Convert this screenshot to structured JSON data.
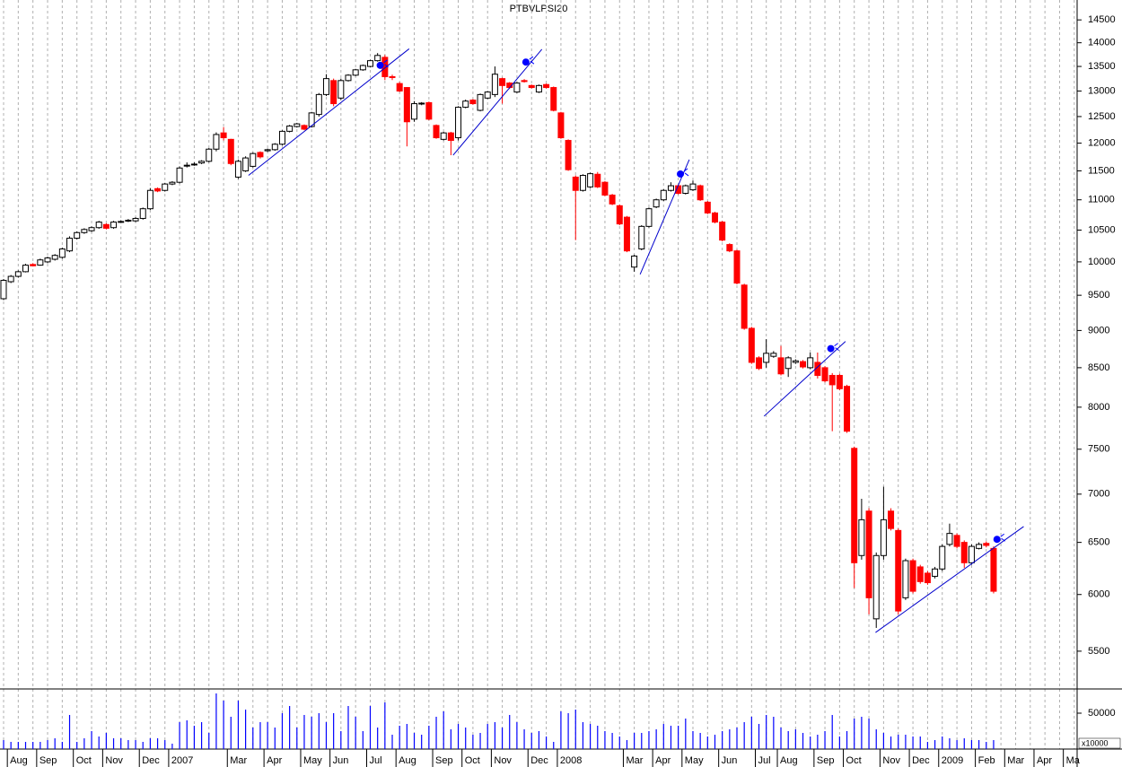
{
  "chart_data": {
    "type": "candlestick",
    "title": "PTBVLPSI20",
    "categories": [
      null,
      "Aug",
      null,
      null,
      null,
      "Sep",
      null,
      null,
      null,
      null,
      "Oct",
      null,
      null,
      null,
      "Nov",
      null,
      null,
      null,
      null,
      "Dec",
      null,
      null,
      null,
      "2007",
      null,
      null,
      null,
      null,
      null,
      null,
      null,
      "Mar",
      null,
      null,
      null,
      null,
      "Apr",
      null,
      null,
      null,
      null,
      "May",
      null,
      null,
      null,
      "Jun",
      null,
      null,
      null,
      null,
      "Jul",
      null,
      null,
      null,
      "Aug",
      null,
      null,
      null,
      null,
      "Sep",
      null,
      null,
      null,
      "Oct",
      null,
      null,
      null,
      "Nov",
      null,
      null,
      null,
      null,
      "Dec",
      null,
      null,
      null,
      "2008",
      null,
      null,
      null,
      null,
      null,
      null,
      null,
      null,
      "Mar",
      null,
      null,
      null,
      "Apr",
      null,
      null,
      null,
      "May",
      null,
      null,
      null,
      null,
      "Jun",
      null,
      null,
      null,
      null,
      "Jul",
      null,
      null,
      "Aug",
      null,
      null,
      null,
      null,
      "Sep",
      null,
      null,
      null,
      "Oct",
      null,
      null,
      null,
      null,
      "Nov",
      null,
      null,
      null,
      "Dec",
      null,
      null,
      null,
      "2009",
      null,
      null,
      null,
      null,
      "Feb",
      null,
      null,
      null,
      "Mar",
      null,
      null,
      null,
      "Apr",
      null,
      null,
      null,
      "Ma",
      null
    ],
    "open": [
      9450,
      9700,
      9780,
      9850,
      9960,
      9950,
      10000,
      10040,
      10070,
      10170,
      10370,
      10460,
      10490,
      10540,
      10590,
      10540,
      10640,
      10650,
      10650,
      10690,
      10850,
      11190,
      11160,
      11270,
      11300,
      11590,
      11610,
      11640,
      11670,
      11890,
      12190,
      12070,
      11390,
      11500,
      11580,
      11830,
      11860,
      11880,
      11980,
      12220,
      12310,
      12330,
      12310,
      12540,
      12930,
      13210,
      12860,
      13210,
      13320,
      13430,
      13500,
      13620,
      13690,
      13290,
      13150,
      13070,
      12450,
      12750,
      12770,
      12330,
      12070,
      12190,
      12100,
      12680,
      12820,
      12620,
      12860,
      12930,
      13250,
      13160,
      12980,
      13210,
      13110,
      12980,
      13130,
      13070,
      12570,
      12050,
      11390,
      11160,
      11220,
      11440,
      11300,
      11080,
      10900,
      10710,
      9920,
      10200,
      10560,
      10880,
      11000,
      11160,
      11240,
      11110,
      11170,
      11240,
      10960,
      10780,
      10630,
      10270,
      10170,
      9650,
      9030,
      8630,
      8570,
      8650,
      8630,
      8490,
      8570,
      8580,
      8500,
      8570,
      8500,
      8400,
      8400,
      8260,
      7510,
      6370,
      6820,
      5780,
      6370,
      6820,
      6620,
      5970,
      6320,
      6260,
      6200,
      6170,
      6240,
      6480,
      6570,
      6500,
      6300,
      6440,
      6490,
      6440,
      null,
      null,
      null,
      null,
      null,
      null,
      null,
      null,
      null,
      null,
      null
    ],
    "high": [
      9740,
      9800,
      9870,
      9970,
      9980,
      10050,
      10080,
      10120,
      10220,
      10400,
      10480,
      10530,
      10560,
      10650,
      10610,
      10650,
      10660,
      10680,
      10710,
      10870,
      11200,
      11210,
      11290,
      11320,
      11580,
      11650,
      11650,
      11690,
      11910,
      12200,
      12300,
      12080,
      11700,
      11760,
      11830,
      11850,
      11900,
      12000,
      12240,
      12340,
      12380,
      12350,
      12590,
      12960,
      13340,
      13250,
      13250,
      13340,
      13450,
      13540,
      13640,
      13780,
      13740,
      13330,
      13180,
      13080,
      12800,
      12780,
      12790,
      12350,
      12210,
      12210,
      12700,
      12830,
      12840,
      12950,
      13000,
      13500,
      13270,
      13180,
      13180,
      13240,
      13130,
      13130,
      13150,
      13090,
      12590,
      12070,
      11420,
      11440,
      11470,
      11480,
      11320,
      11100,
      10920,
      10730,
      10110,
      10580,
      10870,
      11020,
      11180,
      11300,
      11260,
      11260,
      11330,
      11260,
      10980,
      10800,
      10650,
      10290,
      10190,
      9670,
      9050,
      8650,
      8880,
      8720,
      8790,
      8650,
      8610,
      8600,
      8700,
      8700,
      8520,
      8430,
      8420,
      8280,
      7530,
      6950,
      6850,
      6400,
      7080,
      6850,
      6640,
      6340,
      6340,
      6280,
      6220,
      6260,
      6480,
      6690,
      6590,
      6520,
      6480,
      6500,
      6510,
      6460,
      null,
      null,
      null,
      null,
      null,
      null,
      null,
      null,
      null,
      null,
      null
    ],
    "low": [
      9430,
      9680,
      9760,
      9840,
      9930,
      9940,
      9980,
      10020,
      10050,
      10150,
      10350,
      10440,
      10470,
      10520,
      10510,
      10520,
      10620,
      10630,
      10630,
      10670,
      10830,
      11130,
      11140,
      11250,
      11280,
      11560,
      11590,
      11620,
      11650,
      11850,
      12050,
      11600,
      11360,
      11480,
      11560,
      11720,
      11840,
      11860,
      11960,
      12200,
      12290,
      12240,
      12290,
      12500,
      12900,
      12700,
      12820,
      13190,
      13300,
      13410,
      13480,
      13600,
      13220,
      13220,
      12980,
      11940,
      12400,
      12720,
      12430,
      12080,
      12050,
      11780,
      12050,
      12660,
      12730,
      12600,
      12840,
      12880,
      12750,
      13040,
      12960,
      13170,
      13050,
      12960,
      13050,
      12600,
      12080,
      11500,
      10340,
      11140,
      11200,
      11200,
      11060,
      10910,
      10580,
      10150,
      9850,
      10180,
      10540,
      10860,
      10980,
      11140,
      11090,
      11090,
      11150,
      10980,
      10760,
      10610,
      10320,
      10150,
      9660,
      9010,
      8550,
      8470,
      8500,
      8630,
      8400,
      8380,
      8550,
      8490,
      8480,
      8360,
      8310,
      7710,
      8210,
      7690,
      6060,
      6330,
      5820,
      5700,
      6330,
      6620,
      5820,
      5950,
      6010,
      6100,
      6090,
      6150,
      6220,
      6460,
      6440,
      6250,
      6280,
      6430,
      6450,
      6010,
      null,
      null,
      null,
      null,
      null,
      null,
      null,
      null,
      null,
      null,
      null
    ],
    "close": [
      9720,
      9780,
      9850,
      9950,
      9940,
      10030,
      10060,
      10100,
      10200,
      10370,
      10460,
      10510,
      10540,
      10630,
      10530,
      10630,
      10640,
      10660,
      10690,
      10850,
      11160,
      11150,
      11270,
      11300,
      11550,
      11600,
      11620,
      11670,
      11890,
      12160,
      12100,
      11630,
      11670,
      11730,
      11810,
      11750,
      11880,
      11980,
      12220,
      12320,
      12360,
      12260,
      12570,
      12930,
      13250,
      12750,
      13210,
      13320,
      13430,
      13520,
      13620,
      13730,
      13290,
      13280,
      13000,
      12400,
      12750,
      12760,
      12450,
      12100,
      12190,
      12050,
      12680,
      12800,
      12750,
      12930,
      12980,
      13340,
      13110,
      13070,
      13160,
      13190,
      13070,
      13110,
      13070,
      12620,
      12100,
      11520,
      11160,
      11420,
      11450,
      11220,
      11080,
      10930,
      10600,
      10170,
      10090,
      10560,
      10850,
      11000,
      11160,
      11240,
      11110,
      11240,
      11270,
      11000,
      10780,
      10630,
      10340,
      10170,
      9680,
      9030,
      8570,
      8490,
      8690,
      8690,
      8420,
      8630,
      8590,
      8510,
      8630,
      8400,
      8330,
      8280,
      8230,
      7710,
      6300,
      6730,
      5970,
      6370,
      6730,
      6640,
      5850,
      6320,
      6030,
      6120,
      6110,
      6240,
      6460,
      6590,
      6460,
      6300,
      6460,
      6480,
      6470,
      6030,
      null,
      null,
      null,
      null,
      null,
      null,
      null,
      null,
      null,
      null,
      null
    ],
    "volume": [
      12500,
      10000,
      10000,
      10000,
      10000,
      10000,
      12500,
      15000,
      10000,
      47500,
      10000,
      15000,
      25000,
      17500,
      22500,
      15000,
      15000,
      12500,
      12500,
      10000,
      15000,
      15000,
      12500,
      7500,
      37500,
      40000,
      32500,
      37500,
      22500,
      77500,
      67500,
      45000,
      67500,
      55000,
      30000,
      37500,
      37500,
      30000,
      50000,
      60000,
      30000,
      47500,
      45000,
      50000,
      37500,
      50000,
      25000,
      60000,
      45000,
      25000,
      60000,
      30000,
      65000,
      20000,
      32500,
      35000,
      22500,
      20000,
      32500,
      45000,
      52500,
      27500,
      35000,
      30000,
      20000,
      22500,
      35000,
      37500,
      30000,
      47500,
      37500,
      27500,
      22500,
      25000,
      17500,
      10000,
      52500,
      50000,
      55000,
      37500,
      35000,
      32500,
      25000,
      22500,
      17500,
      12500,
      22500,
      22500,
      25000,
      27500,
      35000,
      32500,
      32500,
      42500,
      25000,
      22500,
      17500,
      20000,
      25000,
      27500,
      30000,
      37500,
      45000,
      35000,
      47500,
      45000,
      30000,
      25000,
      27500,
      22500,
      17500,
      20000,
      25000,
      47500,
      17500,
      25000,
      42500,
      45000,
      42500,
      27500,
      22500,
      17500,
      20000,
      20000,
      17500,
      17500,
      10000,
      12500,
      17500,
      15000,
      12500,
      15000,
      12500,
      12500,
      10000,
      12500,
      null,
      null,
      null,
      null,
      null,
      null,
      null,
      null,
      null,
      null,
      null
    ],
    "ylim": [
      5190,
      14950
    ],
    "yticks": [
      5500,
      6000,
      6500,
      7000,
      7500,
      8000,
      8500,
      9000,
      9500,
      10000,
      10500,
      11000,
      11500,
      12000,
      12500,
      13000,
      13500,
      14000,
      14500
    ],
    "log_scale": true,
    "y2lim": [
      0,
      82500
    ],
    "y2ticks": [
      50000
    ],
    "y2_unit": "x10000",
    "x_grid": true,
    "up_color": "#ffffff",
    "down_color": "#ff0000",
    "volume_color": "#0000ff",
    "trendline_color": "#0000cc",
    "trendlines": [
      {
        "x": [
          33.4,
          55.3
        ],
        "y": [
          11420,
          13870
        ]
      },
      {
        "x": [
          61.3,
          73.4
        ],
        "y": [
          11780,
          13860
        ]
      },
      {
        "x": [
          86.8,
          93.5
        ],
        "y": [
          9810,
          11700
        ]
      },
      {
        "x": [
          103.7,
          114.8
        ],
        "y": [
          7890,
          8850
        ]
      },
      {
        "x": [
          118.9,
          139.1
        ],
        "y": [
          5660,
          6660
        ]
      }
    ]
  }
}
